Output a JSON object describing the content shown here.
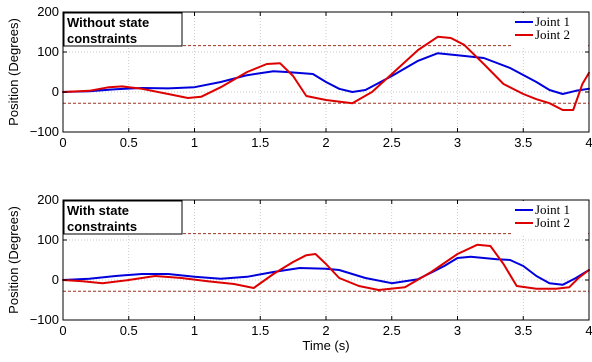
{
  "chart_data": [
    {
      "type": "line",
      "annotation": [
        "Without state",
        "constraints"
      ],
      "xlabel": "",
      "ylabel": "Position (Degrees)",
      "xlim": [
        0,
        4
      ],
      "ylim": [
        -100,
        200
      ],
      "xticks": [
        0,
        0.5,
        1,
        1.5,
        2,
        2.5,
        3,
        3.5,
        4
      ],
      "xtick_labels": [
        "0",
        "0.5",
        "1",
        "1.5",
        "2",
        "2.5",
        "3",
        "3.5",
        "4"
      ],
      "yticks": [
        -100,
        0,
        100,
        200
      ],
      "ytick_labels": [
        "−100",
        "0",
        "100",
        "200"
      ],
      "grid": true,
      "legend_position": "top-right",
      "constraint_lines": [
        116,
        -28
      ],
      "series": [
        {
          "name": "Joint 1",
          "color": "#0000dd",
          "x": [
            0,
            0.2,
            0.4,
            0.6,
            0.8,
            1.0,
            1.2,
            1.4,
            1.6,
            1.7,
            1.9,
            2.0,
            2.1,
            2.2,
            2.3,
            2.5,
            2.7,
            2.85,
            3.0,
            3.2,
            3.4,
            3.6,
            3.7,
            3.8,
            3.9,
            4.0
          ],
          "y": [
            0,
            2,
            7,
            10,
            9,
            12,
            25,
            42,
            52,
            50,
            45,
            25,
            8,
            0,
            5,
            40,
            78,
            97,
            92,
            85,
            60,
            25,
            5,
            -5,
            3,
            8
          ]
        },
        {
          "name": "Joint 2",
          "color": "#dd0000",
          "x": [
            0,
            0.2,
            0.35,
            0.45,
            0.6,
            0.8,
            0.95,
            1.05,
            1.2,
            1.4,
            1.55,
            1.65,
            1.75,
            1.85,
            2.0,
            2.2,
            2.35,
            2.5,
            2.7,
            2.85,
            2.95,
            3.05,
            3.2,
            3.35,
            3.5,
            3.6,
            3.7,
            3.8,
            3.88,
            3.95,
            4.0
          ],
          "y": [
            0,
            3,
            12,
            14,
            8,
            -5,
            -15,
            -12,
            12,
            50,
            70,
            72,
            40,
            -10,
            -20,
            -28,
            0,
            45,
            105,
            138,
            135,
            118,
            70,
            20,
            -5,
            -18,
            -28,
            -45,
            -45,
            20,
            48
          ]
        }
      ]
    },
    {
      "type": "line",
      "annotation": [
        "With state",
        "constraints"
      ],
      "xlabel": "Time (s)",
      "ylabel": "Position (Degrees)",
      "xlim": [
        0,
        4
      ],
      "ylim": [
        -100,
        200
      ],
      "xticks": [
        0,
        0.5,
        1,
        1.5,
        2,
        2.5,
        3,
        3.5,
        4
      ],
      "xtick_labels": [
        "0",
        "0.5",
        "1",
        "1.5",
        "2",
        "2.5",
        "3",
        "3.5",
        "4"
      ],
      "yticks": [
        -100,
        0,
        100,
        200
      ],
      "ytick_labels": [
        "−100",
        "0",
        "100",
        "200"
      ],
      "grid": true,
      "legend_position": "top-right",
      "constraint_lines": [
        116,
        -28
      ],
      "series": [
        {
          "name": "Joint 1",
          "color": "#0000dd",
          "x": [
            0,
            0.2,
            0.4,
            0.6,
            0.8,
            1.0,
            1.2,
            1.4,
            1.6,
            1.8,
            2.0,
            2.1,
            2.3,
            2.5,
            2.7,
            2.9,
            3.0,
            3.1,
            3.3,
            3.4,
            3.5,
            3.6,
            3.7,
            3.8,
            3.9,
            4.0
          ],
          "y": [
            0,
            3,
            10,
            15,
            15,
            8,
            3,
            8,
            20,
            30,
            28,
            25,
            5,
            -8,
            2,
            35,
            55,
            58,
            52,
            50,
            35,
            10,
            -8,
            -12,
            5,
            25
          ]
        },
        {
          "name": "Joint 2",
          "color": "#dd0000",
          "x": [
            0,
            0.15,
            0.3,
            0.5,
            0.7,
            0.9,
            1.1,
            1.3,
            1.45,
            1.6,
            1.75,
            1.85,
            1.92,
            2.0,
            2.1,
            2.25,
            2.4,
            2.6,
            2.8,
            3.0,
            3.15,
            3.25,
            3.35,
            3.45,
            3.6,
            3.75,
            3.85,
            3.92,
            4.0
          ],
          "y": [
            0,
            -3,
            -8,
            0,
            10,
            5,
            -3,
            -10,
            -20,
            15,
            45,
            62,
            65,
            40,
            5,
            -15,
            -25,
            -18,
            20,
            65,
            88,
            85,
            40,
            -15,
            -22,
            -22,
            -18,
            5,
            25
          ]
        }
      ]
    }
  ]
}
